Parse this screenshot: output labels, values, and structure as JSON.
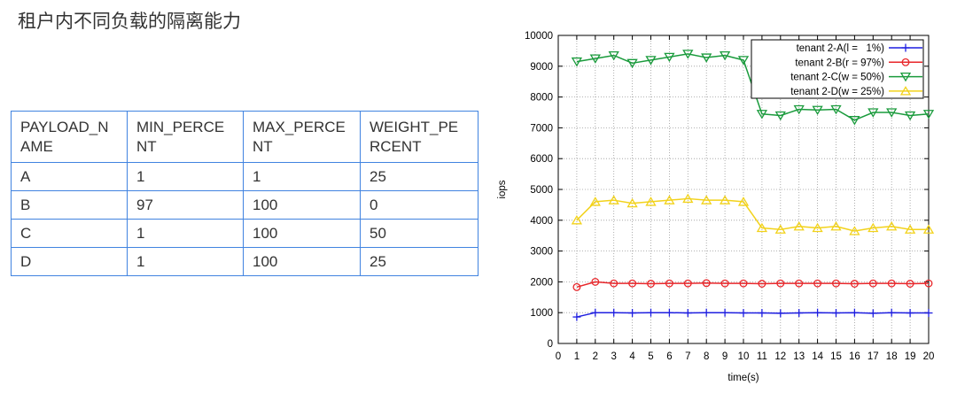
{
  "page": {
    "title": "租户内不同负载的隔离能力"
  },
  "table": {
    "border_color": "#4083e0",
    "headers": [
      "PAYLOAD_NAME",
      "MIN_PERCENT",
      "MAX_PERCENT",
      "WEIGHT_PERCENT"
    ],
    "rows": [
      [
        "A",
        "1",
        "1",
        "25"
      ],
      [
        "B",
        "97",
        "100",
        "0"
      ],
      [
        "C",
        "1",
        "100",
        "50"
      ],
      [
        "D",
        "1",
        "100",
        "25"
      ]
    ]
  },
  "chart_data": {
    "type": "line",
    "xlabel": "time(s)",
    "ylabel": "iops",
    "xlim": [
      0,
      20
    ],
    "ylim": [
      0,
      10000
    ],
    "x_ticks": [
      0,
      1,
      2,
      3,
      4,
      5,
      6,
      7,
      8,
      9,
      10,
      11,
      12,
      13,
      14,
      15,
      16,
      17,
      18,
      19,
      20
    ],
    "y_ticks": [
      0,
      1000,
      2000,
      3000,
      4000,
      5000,
      6000,
      7000,
      8000,
      9000,
      10000
    ],
    "grid": true,
    "legend_position": "top-right",
    "x": [
      1,
      2,
      3,
      4,
      5,
      6,
      7,
      8,
      9,
      10,
      11,
      12,
      13,
      14,
      15,
      16,
      17,
      18,
      19,
      20
    ],
    "series": [
      {
        "name": "tenant 2-A(l =   1%)",
        "color": "#1f1fe0",
        "marker": "plus",
        "values": [
          860,
          1000,
          1000,
          990,
          1000,
          1000,
          990,
          1000,
          1000,
          990,
          990,
          980,
          990,
          1000,
          990,
          1000,
          980,
          1000,
          990,
          990
        ]
      },
      {
        "name": "tenant 2-B(r = 97%)",
        "color": "#e8262a",
        "marker": "circle",
        "values": [
          1830,
          2000,
          1950,
          1950,
          1940,
          1950,
          1950,
          1960,
          1950,
          1950,
          1940,
          1950,
          1950,
          1950,
          1950,
          1940,
          1950,
          1950,
          1940,
          1950
        ]
      },
      {
        "name": "tenant 2-C(w = 50%)",
        "color": "#1a9b3c",
        "marker": "triangle-down",
        "values": [
          9150,
          9250,
          9350,
          9100,
          9200,
          9300,
          9400,
          9280,
          9350,
          9200,
          7450,
          7400,
          7600,
          7580,
          7600,
          7250,
          7500,
          7500,
          7400,
          7450
        ]
      },
      {
        "name": "tenant 2-D(w = 25%)",
        "color": "#f2d21b",
        "marker": "triangle-up",
        "values": [
          4000,
          4600,
          4650,
          4550,
          4600,
          4650,
          4700,
          4650,
          4650,
          4600,
          3750,
          3700,
          3800,
          3750,
          3800,
          3650,
          3750,
          3800,
          3700,
          3700
        ]
      }
    ]
  }
}
